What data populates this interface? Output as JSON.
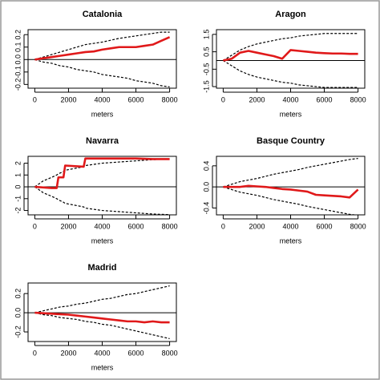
{
  "chart_data": [
    {
      "type": "line",
      "title": "Catalonia",
      "xlabel": "meters",
      "x": [
        0,
        500,
        1000,
        1500,
        2000,
        2500,
        3000,
        3500,
        4000,
        4500,
        5000,
        5500,
        6000,
        6500,
        7000,
        7500,
        8000
      ],
      "series": [
        {
          "color": "#000000",
          "dash": true,
          "values": [
            0,
            0.02,
            0.04,
            0.06,
            0.08,
            0.1,
            0.12,
            0.13,
            0.14,
            0.155,
            0.17,
            0.18,
            0.19,
            0.2,
            0.21,
            0.22,
            0.22
          ]
        },
        {
          "color": "#000000",
          "dash": true,
          "values": [
            0,
            -0.02,
            -0.03,
            -0.05,
            -0.06,
            -0.08,
            -0.09,
            -0.1,
            -0.12,
            -0.13,
            -0.14,
            -0.15,
            -0.17,
            -0.18,
            -0.19,
            -0.21,
            -0.22
          ]
        },
        {
          "color": "#e0191a",
          "dash": false,
          "values": [
            0,
            0.01,
            0.02,
            0.03,
            0.04,
            0.05,
            0.06,
            0.065,
            0.08,
            0.09,
            0.1,
            0.1,
            0.1,
            0.11,
            0.12,
            0.15,
            0.18
          ]
        }
      ],
      "hline": 0,
      "xlim": [
        -400,
        8400
      ],
      "ylim": [
        -0.23,
        0.24
      ],
      "xticks": [
        0,
        2000,
        4000,
        6000,
        8000
      ],
      "yticks": [
        -0.2,
        -0.1,
        {
          "value": 0,
          "label": "0.0"
        },
        0.1,
        0.2
      ]
    },
    {
      "type": "line",
      "title": "Aragon",
      "xlabel": "meters",
      "x": [
        0,
        500,
        1000,
        1500,
        2000,
        2500,
        3000,
        3500,
        4000,
        4500,
        5000,
        5500,
        6000,
        6500,
        7000,
        7500,
        8000
      ],
      "series": [
        {
          "color": "#000000",
          "dash": true,
          "values": [
            0,
            0.3,
            0.6,
            0.8,
            0.95,
            1.05,
            1.15,
            1.25,
            1.3,
            1.4,
            1.45,
            1.5,
            1.55,
            1.55,
            1.55,
            1.55,
            1.55
          ]
        },
        {
          "color": "#000000",
          "dash": true,
          "values": [
            0,
            -0.3,
            -0.6,
            -0.8,
            -0.95,
            -1.05,
            -1.15,
            -1.25,
            -1.3,
            -1.4,
            -1.45,
            -1.5,
            -1.55,
            -1.55,
            -1.55,
            -1.55,
            -1.55
          ]
        },
        {
          "color": "#e0191a",
          "dash": false,
          "values": [
            0,
            0.1,
            0.45,
            0.55,
            0.45,
            0.35,
            0.25,
            0.1,
            0.6,
            0.55,
            0.5,
            0.45,
            0.42,
            0.4,
            0.4,
            0.38,
            0.38
          ]
        }
      ],
      "hline": 0,
      "xlim": [
        -400,
        8400
      ],
      "ylim": [
        -1.59,
        1.77
      ],
      "xticks": [
        0,
        2000,
        4000,
        6000,
        8000
      ],
      "yticks": [
        -1.5,
        -0.5,
        0.5,
        1.5
      ]
    },
    {
      "type": "line",
      "title": "Navarra",
      "xlabel": "meters",
      "x": [
        0,
        500,
        1000,
        1300,
        1400,
        1700,
        1800,
        2900,
        3000,
        4000,
        5000,
        6000,
        7000,
        8000
      ],
      "series": [
        {
          "color": "#000000",
          "dash": true,
          "values": [
            0,
            0.5,
            0.8,
            1.0,
            1.1,
            1.3,
            1.4,
            1.7,
            1.8,
            2.0,
            2.1,
            2.2,
            2.3,
            2.35
          ]
        },
        {
          "color": "#000000",
          "dash": true,
          "values": [
            0,
            -0.5,
            -0.8,
            -1.0,
            -1.1,
            -1.3,
            -1.4,
            -1.7,
            -1.8,
            -2.0,
            -2.1,
            -2.2,
            -2.3,
            -2.35
          ]
        },
        {
          "color": "#e0191a",
          "dash": false,
          "values": [
            0,
            -0.05,
            -0.1,
            -0.1,
            0.8,
            0.8,
            1.8,
            1.7,
            2.4,
            2.4,
            2.4,
            2.4,
            2.35,
            2.35
          ]
        }
      ],
      "hline": 0,
      "xlim": [
        -400,
        8400
      ],
      "ylim": [
        -2.37,
        2.58
      ],
      "xticks": [
        0,
        2000,
        4000,
        6000,
        8000
      ],
      "yticks": [
        -2,
        -1,
        0,
        1,
        2
      ]
    },
    {
      "type": "line",
      "title": "Basque Country",
      "xlabel": "meters",
      "x": [
        0,
        500,
        1000,
        1500,
        2000,
        2500,
        3000,
        3500,
        4000,
        4500,
        5000,
        5500,
        6000,
        6500,
        7000,
        7500,
        8000
      ],
      "series": [
        {
          "color": "#000000",
          "dash": true,
          "values": [
            0,
            0.05,
            0.1,
            0.13,
            0.16,
            0.2,
            0.24,
            0.27,
            0.3,
            0.33,
            0.37,
            0.4,
            0.43,
            0.46,
            0.49,
            0.52,
            0.54
          ]
        },
        {
          "color": "#000000",
          "dash": true,
          "values": [
            0,
            -0.05,
            -0.1,
            -0.13,
            -0.16,
            -0.2,
            -0.24,
            -0.27,
            -0.3,
            -0.33,
            -0.37,
            -0.4,
            -0.43,
            -0.46,
            -0.49,
            -0.52,
            -0.54
          ]
        },
        {
          "color": "#e0191a",
          "dash": false,
          "values": [
            0,
            0,
            0,
            0.02,
            0.01,
            0,
            -0.02,
            -0.04,
            -0.05,
            -0.07,
            -0.09,
            -0.15,
            -0.16,
            -0.17,
            -0.18,
            -0.2,
            -0.05
          ]
        }
      ],
      "hline": 0,
      "xlim": [
        -400,
        8400
      ],
      "ylim": [
        -0.53,
        0.58
      ],
      "xticks": [
        0,
        2000,
        4000,
        6000,
        8000
      ],
      "yticks": [
        -0.4,
        {
          "value": 0,
          "label": "0.0"
        },
        0.4
      ]
    },
    {
      "type": "line",
      "title": "Madrid",
      "xlabel": "meters",
      "x": [
        0,
        500,
        1000,
        1500,
        2000,
        2500,
        3000,
        3500,
        4000,
        4500,
        5000,
        5500,
        6000,
        6500,
        7000,
        7500,
        8000
      ],
      "series": [
        {
          "color": "#000000",
          "dash": true,
          "values": [
            0,
            0.02,
            0.04,
            0.06,
            0.07,
            0.09,
            0.1,
            0.12,
            0.14,
            0.15,
            0.17,
            0.19,
            0.2,
            0.22,
            0.24,
            0.26,
            0.28
          ]
        },
        {
          "color": "#000000",
          "dash": true,
          "values": [
            0,
            -0.02,
            -0.03,
            -0.05,
            -0.06,
            -0.07,
            -0.09,
            -0.1,
            -0.12,
            -0.13,
            -0.15,
            -0.17,
            -0.19,
            -0.21,
            -0.23,
            -0.25,
            -0.27
          ]
        },
        {
          "color": "#e0191a",
          "dash": false,
          "values": [
            0,
            -0.005,
            -0.01,
            -0.015,
            -0.02,
            -0.03,
            -0.04,
            -0.05,
            -0.06,
            -0.07,
            -0.08,
            -0.09,
            -0.09,
            -0.1,
            -0.09,
            -0.1,
            -0.1
          ]
        }
      ],
      "hline": 0,
      "xlim": [
        -400,
        8400
      ],
      "ylim": [
        -0.3,
        0.31
      ],
      "xticks": [
        0,
        2000,
        4000,
        6000,
        8000
      ],
      "yticks": [
        -0.2,
        {
          "value": 0,
          "label": "0.0"
        },
        0.2
      ]
    }
  ]
}
